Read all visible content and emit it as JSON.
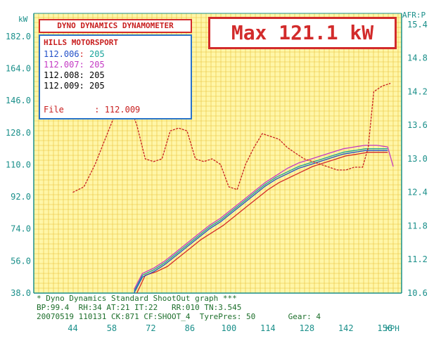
{
  "header": {
    "title": "DYNO DYNAMICS DYNAMOMETER",
    "max_label": "Max 121.1 kW"
  },
  "legend": {
    "shop": "HILLS MOTORSPORT",
    "runs": [
      {
        "id": "112.006",
        "value": "205",
        "color": "#d42a2a"
      },
      {
        "id": "112.007",
        "value": "205",
        "color": "#2250c8"
      },
      {
        "id": "112.008",
        "value": "205",
        "color": "#17a39a"
      },
      {
        "id": "112.009",
        "value": "205",
        "color": "#c43ac4"
      }
    ],
    "file_label": "File",
    "file_value": "112.009"
  },
  "footer": {
    "line1": "* Dyno Dynamics Standard ShootOut graph ***",
    "line2": "BP:99.4  RH:34 AT:21 IT:22   RR:010 TN:3.545",
    "line3": "20070519 110131 CK:871 CF:SHOOT_4  TyrePres: 50       Gear: 4"
  },
  "chart_data": {
    "type": "line",
    "xlabel": "KPH",
    "ylabel": "kW",
    "y2label": "AFR:P",
    "xlim": [
      30,
      162
    ],
    "ylim": [
      38,
      195
    ],
    "y2lim": [
      10.6,
      15.6
    ],
    "x_ticks": [
      44,
      58,
      72,
      86,
      100,
      114,
      128,
      142,
      156
    ],
    "y_ticks": [
      38.0,
      56.0,
      74.0,
      92.0,
      110.0,
      128.0,
      146.0,
      164.0,
      182.0
    ],
    "y2_ticks": [
      10.6,
      11.2,
      11.8,
      12.4,
      13.0,
      13.6,
      14.2,
      14.8,
      15.4
    ],
    "grid": true,
    "colors": {
      "grid": "#e8c23a",
      "background": "#fff6a8",
      "axis": "#1a8f8a"
    },
    "series": [
      {
        "name": "112.006",
        "axis": "left",
        "color": "#d42a2a",
        "x": [
          67,
          70,
          74,
          78,
          82,
          86,
          90,
          94,
          98,
          102,
          106,
          110,
          114,
          118,
          122,
          126,
          130,
          134,
          138,
          142,
          146,
          150,
          154,
          157
        ],
        "y": [
          38,
          48,
          50,
          53,
          58,
          63,
          68,
          72,
          76,
          81,
          86,
          91,
          96,
          100,
          103,
          106,
          109,
          111,
          113,
          115,
          116,
          117,
          117,
          117
        ]
      },
      {
        "name": "112.007",
        "axis": "left",
        "color": "#2250c8",
        "x": [
          66,
          69,
          73,
          77,
          81,
          85,
          89,
          93,
          97,
          101,
          105,
          109,
          113,
          117,
          121,
          125,
          129,
          133,
          137,
          141,
          145,
          149,
          153,
          157
        ],
        "y": [
          38,
          47,
          50,
          54,
          59,
          64,
          69,
          74,
          78,
          83,
          88,
          93,
          98,
          102,
          105,
          108,
          110,
          112,
          114,
          116,
          117,
          118,
          118,
          118
        ]
      },
      {
        "name": "112.008",
        "axis": "left",
        "color": "#17a39a",
        "x": [
          66,
          69,
          73,
          77,
          81,
          85,
          89,
          93,
          97,
          101,
          105,
          109,
          113,
          117,
          121,
          125,
          129,
          133,
          137,
          141,
          145,
          149,
          153,
          157
        ],
        "y": [
          39,
          48,
          51,
          55,
          60,
          65,
          70,
          75,
          79,
          84,
          89,
          94,
          99,
          103,
          106,
          109,
          111,
          113,
          115,
          117,
          118,
          119,
          119,
          119
        ]
      },
      {
        "name": "112.009",
        "axis": "left",
        "color": "#c43ac4",
        "x": [
          66,
          69,
          73,
          77,
          81,
          85,
          89,
          93,
          97,
          101,
          105,
          109,
          113,
          117,
          121,
          125,
          129,
          133,
          137,
          141,
          145,
          149,
          153,
          157,
          159
        ],
        "y": [
          40,
          49,
          52,
          56,
          61,
          66,
          71,
          76,
          80,
          85,
          90,
          95,
          100,
          104,
          108,
          111,
          113,
          115,
          117,
          119,
          120,
          121,
          121,
          120,
          109
        ]
      },
      {
        "name": "AFR",
        "axis": "right",
        "color": "#c81e1e",
        "dashed": true,
        "x": [
          44,
          48,
          52,
          56,
          60,
          64,
          67,
          70,
          73,
          76,
          79,
          82,
          85,
          88,
          91,
          94,
          97,
          100,
          103,
          106,
          109,
          112,
          115,
          118,
          121,
          124,
          127,
          130,
          133,
          136,
          139,
          142,
          145,
          148,
          150,
          152,
          155,
          158
        ],
        "y2": [
          12.4,
          12.5,
          12.9,
          13.4,
          13.9,
          14.0,
          13.6,
          13.0,
          12.95,
          13.0,
          13.5,
          13.55,
          13.5,
          13.0,
          12.95,
          13.0,
          12.9,
          12.5,
          12.45,
          12.9,
          13.2,
          13.45,
          13.4,
          13.35,
          13.2,
          13.1,
          13.0,
          12.95,
          12.9,
          12.85,
          12.8,
          12.8,
          12.85,
          12.85,
          13.2,
          14.2,
          14.3,
          14.35
        ]
      }
    ]
  }
}
